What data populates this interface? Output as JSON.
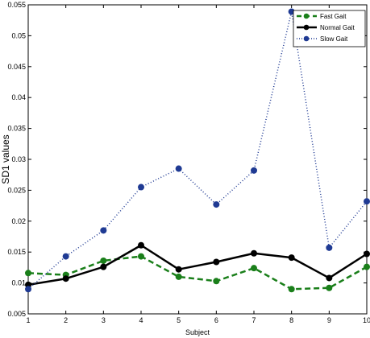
{
  "chart_data": {
    "type": "line",
    "title": "",
    "xlabel": "Subject",
    "ylabel": "SD1 values",
    "xlim": [
      1,
      10
    ],
    "ylim": [
      0.005,
      0.055
    ],
    "x_ticks": [
      1,
      2,
      3,
      4,
      5,
      6,
      7,
      8,
      9,
      10
    ],
    "x_tick_labels": [
      "1",
      "2",
      "3",
      "4",
      "5",
      "6",
      "7",
      "8",
      "9",
      "10"
    ],
    "y_ticks": [
      0.005,
      0.01,
      0.015,
      0.02,
      0.025,
      0.03,
      0.035,
      0.04,
      0.045,
      0.05,
      0.055
    ],
    "y_tick_labels": [
      "0.005",
      "0.01",
      "0.015",
      "0.02",
      "0.025",
      "0.03",
      "0.035",
      "0.04",
      "0.045",
      "0.05",
      "0.055"
    ],
    "grid": false,
    "legend_position": "top-right",
    "x": [
      1,
      2,
      3,
      4,
      5,
      6,
      7,
      8,
      9,
      10
    ],
    "series": [
      {
        "name": "Fast Gait",
        "color": "#1a7f1a",
        "line_style": "dashed",
        "marker": "circle",
        "values": [
          0.0116,
          0.0113,
          0.0136,
          0.0143,
          0.011,
          0.0103,
          0.0124,
          0.009,
          0.0092,
          0.0126
        ]
      },
      {
        "name": "Normal Gait",
        "color": "#000000",
        "line_style": "solid",
        "marker": "circle",
        "values": [
          0.0097,
          0.0107,
          0.0126,
          0.0161,
          0.0122,
          0.0134,
          0.0148,
          0.0141,
          0.0108,
          0.0147
        ]
      },
      {
        "name": "Slow Gait",
        "color": "#1f3a93",
        "line_style": "dotted",
        "marker": "circle",
        "values": [
          0.009,
          0.0143,
          0.0185,
          0.0255,
          0.0285,
          0.0227,
          0.0282,
          0.0539,
          0.0157,
          0.0232
        ]
      }
    ]
  }
}
